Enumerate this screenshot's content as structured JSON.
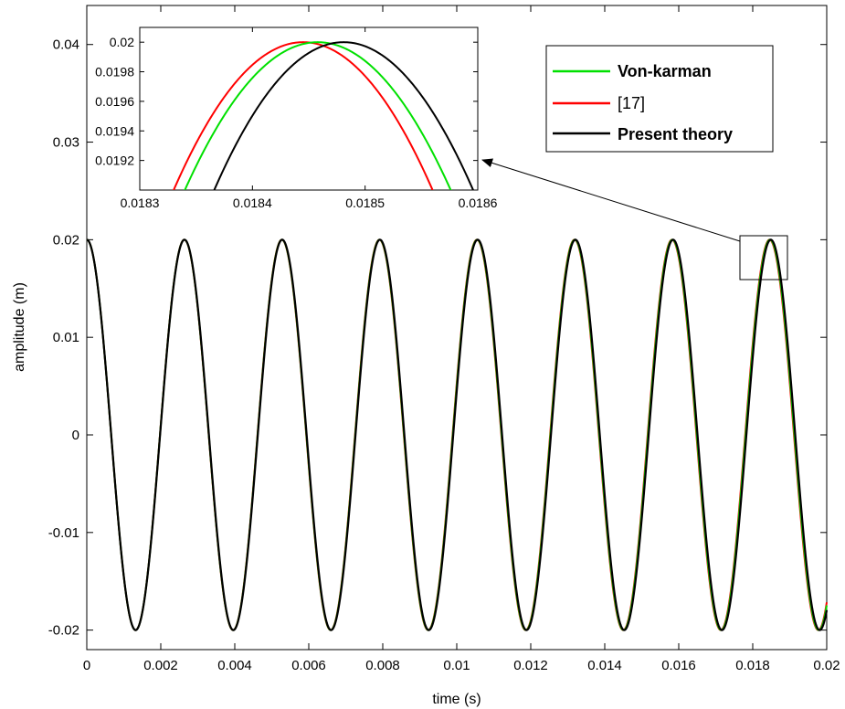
{
  "chart_data": [
    {
      "type": "line",
      "title": "",
      "xlabel": "time (s)",
      "ylabel": "amplitude (m)",
      "xlim": [
        0,
        0.02
      ],
      "ylim": [
        -0.022,
        0.044
      ],
      "xticks": [
        "0",
        "0.002",
        "0.004",
        "0.006",
        "0.008",
        "0.01",
        "0.012",
        "0.014",
        "0.016",
        "0.018",
        "0.02"
      ],
      "yticks": [
        "-0.02",
        "-0.01",
        "0",
        "0.01",
        "0.02",
        "0.03",
        "0.04"
      ],
      "grid": false,
      "legend": "top-right",
      "model": {
        "amplitude": 0.02,
        "period": 0.002654,
        "x_start": 0,
        "x_end": 0.02
      },
      "series": [
        {
          "name": "Von-karman",
          "color": "#00e000",
          "peak_times": [
            0,
            0.002654,
            0.005308,
            0.007962,
            0.010616,
            0.01327,
            0.015924,
            0.018458
          ]
        },
        {
          "name": "[17]",
          "color": "#ff0000",
          "peak_times": [
            0,
            0.002654,
            0.005308,
            0.007962,
            0.010616,
            0.01327,
            0.015924,
            0.018445
          ]
        },
        {
          "name": "Present theory",
          "color": "#000000",
          "peak_times": [
            0,
            0.002654,
            0.005308,
            0.007962,
            0.010616,
            0.01327,
            0.015924,
            0.018481
          ]
        }
      ]
    },
    {
      "type": "line",
      "title": "",
      "xlim": [
        0.0183,
        0.0186
      ],
      "ylim": [
        0.019,
        0.0201
      ],
      "xticks": [
        "0.0183",
        "0.0184",
        "0.0185",
        "0.0186"
      ],
      "yticks": [
        "0.0192",
        "0.0194",
        "0.0196",
        "0.0198",
        "0.02"
      ],
      "series": [
        {
          "name": "Von-karman",
          "color": "#00e000",
          "peak_x": 0.018458,
          "peak_y": 0.02,
          "half_width": 0.000115
        },
        {
          "name": "[17]",
          "color": "#ff0000",
          "peak_x": 0.018445,
          "peak_y": 0.02,
          "half_width": 0.000112
        },
        {
          "name": "Present theory",
          "color": "#000000",
          "peak_x": 0.018481,
          "peak_y": 0.02,
          "half_width": 0.000112
        }
      ]
    }
  ]
}
